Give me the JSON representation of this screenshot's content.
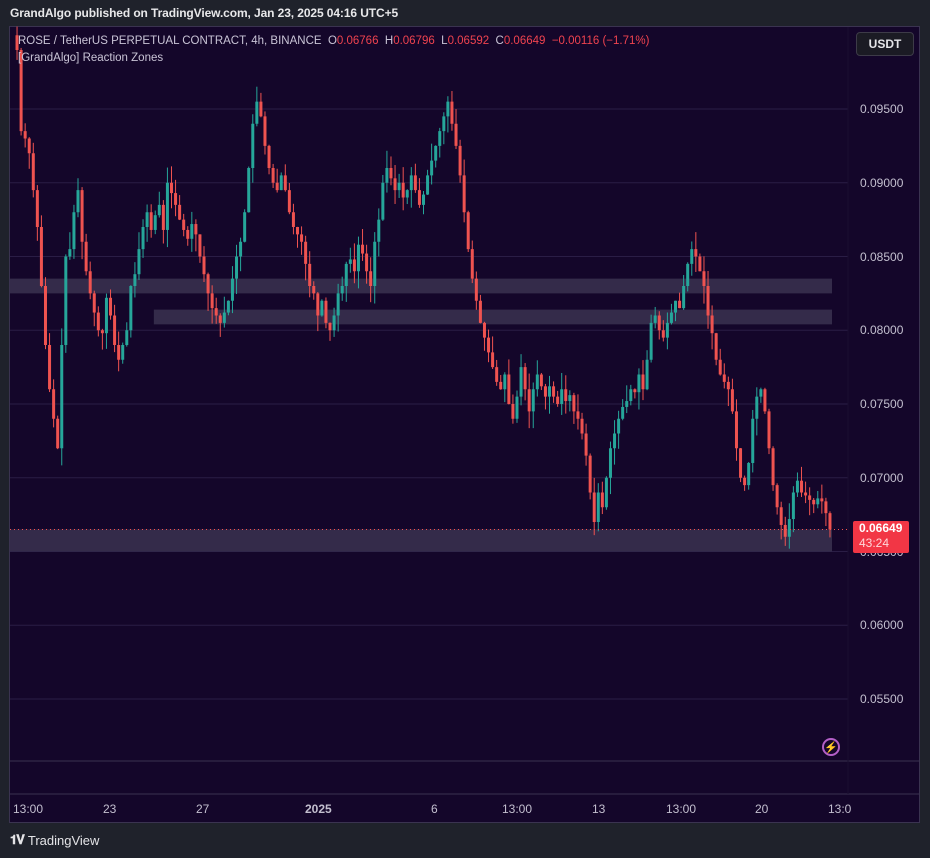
{
  "header": {
    "published_text": "GrandAlgo published on TradingView.com, Jan 23, 2025 04:16 UTC+5"
  },
  "legend": {
    "symbol": "ROSE / TetherUS PERPETUAL CONTRACT, 4h, BINANCE",
    "o_label": "O",
    "o_value": "0.06766",
    "h_label": "H",
    "h_value": "0.06796",
    "l_label": "L",
    "l_value": "0.06592",
    "c_label": "C",
    "c_value": "0.06649",
    "change": "−0.00116 (−1.71%)",
    "indicator": "[GrandAlgo] Reaction Zones"
  },
  "currency_button": "USDT",
  "price_tag": {
    "price": "0.06649",
    "countdown": "43:24"
  },
  "footer": {
    "brand": "TradingView"
  },
  "colors": {
    "up": "#26a69a",
    "down": "#ef5350",
    "background": "#14062a",
    "zone": "#3a3350",
    "price_tag": "#f23645"
  },
  "chart_data": {
    "type": "candlestick",
    "title": "ROSE / TetherUS PERPETUAL CONTRACT, 4h, BINANCE",
    "xlabel": "",
    "ylabel": "USDT",
    "ylim": [
      0.0505,
      0.0995
    ],
    "grid": true,
    "y_ticks": [
      "0.09500",
      "0.09000",
      "0.08500",
      "0.08000",
      "0.07500",
      "0.07000",
      "0.06500",
      "0.06000",
      "0.05500"
    ],
    "x_ticks": [
      "13:00",
      "23",
      "27",
      "2025",
      "6",
      "13:00",
      "13",
      "13:00",
      "20",
      "13:0"
    ],
    "last_price": 0.06649,
    "reaction_zones": [
      {
        "from": 0.0825,
        "to": 0.0835,
        "x_start_frac": 0.0
      },
      {
        "from": 0.0804,
        "to": 0.0814,
        "x_start_frac": 0.175
      },
      {
        "from": 0.065,
        "to": 0.0665,
        "x_start_frac": 0.0
      }
    ],
    "closes": [
      0.099,
      0.0935,
      0.093,
      0.092,
      0.0895,
      0.087,
      0.083,
      0.079,
      0.076,
      0.074,
      0.072,
      0.079,
      0.085,
      0.0855,
      0.088,
      0.0895,
      0.086,
      0.084,
      0.0825,
      0.0812,
      0.08,
      0.0798,
      0.0822,
      0.081,
      0.079,
      0.078,
      0.079,
      0.08,
      0.083,
      0.0838,
      0.0855,
      0.087,
      0.088,
      0.0868,
      0.0878,
      0.0885,
      0.0868,
      0.09,
      0.0893,
      0.0885,
      0.0875,
      0.0868,
      0.0862,
      0.0872,
      0.0865,
      0.085,
      0.0838,
      0.0825,
      0.0815,
      0.081,
      0.0805,
      0.0812,
      0.082,
      0.0835,
      0.085,
      0.086,
      0.088,
      0.091,
      0.094,
      0.0955,
      0.0945,
      0.0925,
      0.091,
      0.09,
      0.0895,
      0.0905,
      0.0895,
      0.088,
      0.087,
      0.0865,
      0.086,
      0.0845,
      0.083,
      0.0825,
      0.081,
      0.082,
      0.0805,
      0.08,
      0.081,
      0.0825,
      0.083,
      0.0845,
      0.0848,
      0.084,
      0.0858,
      0.0852,
      0.084,
      0.083,
      0.086,
      0.0875,
      0.09,
      0.091,
      0.0903,
      0.0895,
      0.09,
      0.089,
      0.0895,
      0.0905,
      0.0895,
      0.0885,
      0.0892,
      0.0905,
      0.0915,
      0.0925,
      0.0935,
      0.0945,
      0.0955,
      0.094,
      0.0925,
      0.0905,
      0.088,
      0.0855,
      0.0835,
      0.082,
      0.0805,
      0.0795,
      0.0785,
      0.0775,
      0.0765,
      0.076,
      0.077,
      0.075,
      0.074,
      0.0755,
      0.0775,
      0.076,
      0.0745,
      0.076,
      0.077,
      0.0762,
      0.0755,
      0.0762,
      0.0755,
      0.075,
      0.076,
      0.0752,
      0.0756,
      0.0745,
      0.074,
      0.073,
      0.0715,
      0.069,
      0.067,
      0.069,
      0.068,
      0.07,
      0.072,
      0.073,
      0.074,
      0.0748,
      0.0752,
      0.076,
      0.0758,
      0.077,
      0.076,
      0.078,
      0.0805,
      0.081,
      0.08,
      0.0795,
      0.0805,
      0.0812,
      0.082,
      0.0815,
      0.083,
      0.0845,
      0.0855,
      0.085,
      0.084,
      0.083,
      0.081,
      0.0798,
      0.078,
      0.077,
      0.0765,
      0.076,
      0.0745,
      0.072,
      0.07,
      0.0695,
      0.071,
      0.074,
      0.0755,
      0.076,
      0.0745,
      0.072,
      0.0695,
      0.068,
      0.0668,
      0.066,
      0.0672,
      0.069,
      0.0698,
      0.069,
      0.0688,
      0.0685,
      0.0682,
      0.0686,
      0.0684,
      0.0676,
      0.0665
    ]
  }
}
